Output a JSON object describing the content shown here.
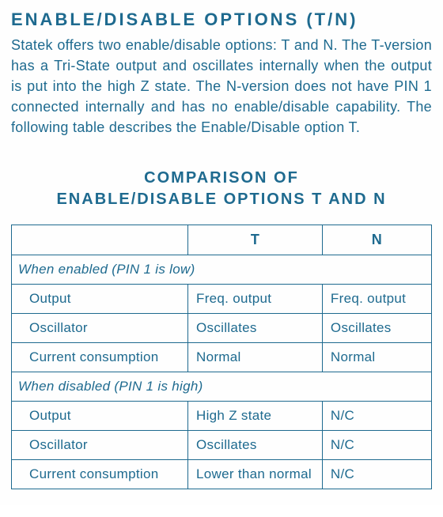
{
  "colors": {
    "text": "#1e6a8f",
    "border": "#1e6a8f",
    "background": "#ffffff"
  },
  "heading": "ENABLE/DISABLE OPTIONS (T/N)",
  "paragraph": "Statek offers two enable/disable options: T and N. The T-version has a Tri-State output and oscillates internally when the output is put into the high Z state. The N-version does not have PIN 1 connected internally and has no enable/disable capability. The following table describes the Enable/Disable option T.",
  "table_title_line1": "COMPARISON OF",
  "table_title_line2": "ENABLE/DISABLE OPTIONS T AND N",
  "table": {
    "columns": {
      "a_width_pct": 42,
      "b_width_pct": 32,
      "c_width_pct": 26
    },
    "header": {
      "t": "T",
      "n": "N"
    },
    "section_enabled": "When enabled (PIN 1 is low)",
    "enabled_rows": [
      {
        "label": "Output",
        "t": "Freq. output",
        "n": "Freq. output"
      },
      {
        "label": "Oscillator",
        "t": "Oscillates",
        "n": "Oscillates"
      },
      {
        "label": "Current consumption",
        "t": "Normal",
        "n": "Normal"
      }
    ],
    "section_disabled": "When disabled (PIN 1 is high)",
    "disabled_rows": [
      {
        "label": "Output",
        "t": "High Z state",
        "n": "N/C"
      },
      {
        "label": "Oscillator",
        "t": "Oscillates",
        "n": "N/C"
      },
      {
        "label": "Current consumption",
        "t": "Lower than normal",
        "n": "N/C"
      }
    ]
  }
}
